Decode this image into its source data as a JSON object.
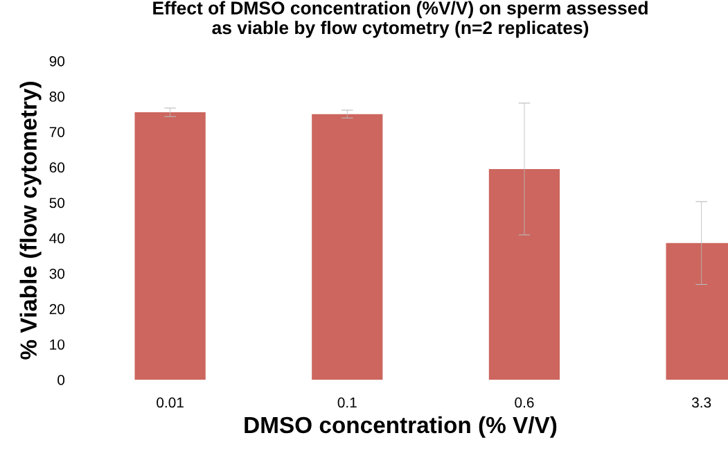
{
  "chart_data": {
    "type": "bar",
    "title": "Effect of DMSO concentration (%V/V) on sperm assessed\nas viable by flow cytometry (n=2 replicates)",
    "xlabel": "DMSO concentration (% V/V)",
    "ylabel": "% Viable (flow cytometry)",
    "categories": [
      "0.01",
      "0.1",
      "0.6",
      "3.3"
    ],
    "values": [
      75.5,
      75.0,
      59.5,
      38.6
    ],
    "errors": [
      1.2,
      1.1,
      18.6,
      11.7
    ],
    "color": "#cc665e",
    "ylim": [
      0,
      90
    ],
    "yticks": [
      0,
      10,
      20,
      30,
      40,
      50,
      60,
      70,
      80,
      90
    ],
    "grid": false
  }
}
